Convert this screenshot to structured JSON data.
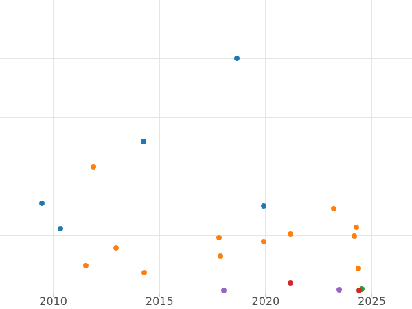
{
  "chart_data": {
    "type": "scatter",
    "title": "",
    "xlabel": "",
    "ylabel": "",
    "grid": true,
    "legend_position": "none",
    "y_axis_labels_visible": false,
    "y_units": "gridline units (y tick labels cropped out of view; one unit = one gridline spacing above plot bottom)",
    "xlim": [
      2007.49,
      2026.89
    ],
    "ylim": [
      0,
      5
    ],
    "x_ticks": [
      2010,
      2015,
      2020,
      2025
    ],
    "x_tick_labels": [
      "2010",
      "2015",
      "2020",
      "2025"
    ],
    "y_gridline_units": [
      1,
      2,
      3,
      4
    ],
    "grid_color": "#e5e5e5",
    "tick_color": "#cfcfcf",
    "tick_label_color": "#4d4d4d",
    "series": [
      {
        "name": "blue",
        "color": "#1f77b4",
        "points": [
          {
            "x": 2009.46,
            "y": 1.54
          },
          {
            "x": 2010.33,
            "y": 1.1
          },
          {
            "x": 2014.25,
            "y": 2.59
          },
          {
            "x": 2018.64,
            "y": 4.01
          },
          {
            "x": 2019.9,
            "y": 1.49
          }
        ]
      },
      {
        "name": "orange",
        "color": "#ff7f0e",
        "points": [
          {
            "x": 2011.53,
            "y": 0.47
          },
          {
            "x": 2011.89,
            "y": 2.16
          },
          {
            "x": 2012.95,
            "y": 0.78
          },
          {
            "x": 2014.28,
            "y": 0.36
          },
          {
            "x": 2017.8,
            "y": 0.95
          },
          {
            "x": 2017.87,
            "y": 0.64
          },
          {
            "x": 2019.9,
            "y": 0.88
          },
          {
            "x": 2021.16,
            "y": 1.01
          },
          {
            "x": 2023.2,
            "y": 1.44
          },
          {
            "x": 2024.17,
            "y": 0.98
          },
          {
            "x": 2024.27,
            "y": 1.13
          },
          {
            "x": 2024.36,
            "y": 0.43
          }
        ]
      },
      {
        "name": "green",
        "color": "#2ca02c",
        "points": [
          {
            "x": 2024.52,
            "y": 0.08
          }
        ]
      },
      {
        "name": "red",
        "color": "#d62728",
        "points": [
          {
            "x": 2021.16,
            "y": 0.18
          },
          {
            "x": 2024.4,
            "y": 0.05
          }
        ]
      },
      {
        "name": "purple",
        "color": "#9467bd",
        "points": [
          {
            "x": 2018.03,
            "y": 0.05
          },
          {
            "x": 2023.46,
            "y": 0.06
          }
        ]
      }
    ]
  }
}
